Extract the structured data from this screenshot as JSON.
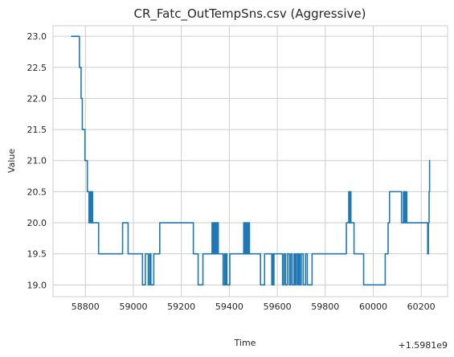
{
  "chart_data": {
    "type": "line",
    "title": "CR_Fatc_OutTempSns.csv (Aggressive)",
    "xlabel": "Time",
    "ylabel": "Value",
    "x_offset_label": "+1.5981e9",
    "xlim": [
      58665,
      60310
    ],
    "ylim": [
      18.81,
      23.17
    ],
    "xticks": [
      58800,
      59000,
      59200,
      59400,
      59600,
      59800,
      60000,
      60200
    ],
    "xtick_labels": [
      "58800",
      "59000",
      "59200",
      "59400",
      "59600",
      "59800",
      "60000",
      "60200"
    ],
    "yticks": [
      19.0,
      19.5,
      20.0,
      20.5,
      21.0,
      21.5,
      22.0,
      22.5,
      23.0
    ],
    "ytick_labels": [
      "19.0",
      "19.5",
      "20.0",
      "20.5",
      "21.0",
      "21.5",
      "22.0",
      "22.5",
      "23.0"
    ],
    "grid": true,
    "colors": {
      "series": "#1f77b4",
      "grid": "#cccccc",
      "text": "#262626"
    },
    "series": [
      {
        "step": "post",
        "x": [
          58740,
          58770,
          58775,
          58782,
          58787,
          58798,
          58808,
          58815,
          58818,
          58822,
          58826,
          58830,
          58850,
          58855,
          58955,
          58978,
          59000,
          59038,
          59050,
          59062,
          59068,
          59073,
          59085,
          59110,
          59250,
          59270,
          59290,
          59328,
          59331,
          59334,
          59337,
          59340,
          59342,
          59345,
          59348,
          59351,
          59354,
          59356,
          59374,
          59380,
          59383,
          59386,
          59390,
          59402,
          59422,
          59460,
          59463,
          59466,
          59469,
          59472,
          59476,
          59480,
          59484,
          59530,
          59547,
          59570,
          59577,
          59580,
          59583,
          59586,
          59595,
          59622,
          59628,
          59634,
          59642,
          59650,
          59656,
          59662,
          59670,
          59675,
          59680,
          59686,
          59690,
          59694,
          59700,
          59708,
          59718,
          59725,
          59745,
          59770,
          59790,
          59888,
          59898,
          59901,
          59904,
          59907,
          59910,
          59920,
          59960,
          59990,
          60050,
          60062,
          60068,
          60078,
          60118,
          60126,
          60129,
          60132,
          60134,
          60137,
          60140,
          60143,
          60146,
          60220,
          60227,
          60230,
          60233,
          60235,
          60237
        ],
        "y": [
          23.0,
          23.0,
          22.5,
          22.0,
          21.5,
          21.0,
          20.5,
          20.0,
          20.5,
          20.0,
          20.5,
          20.0,
          20.0,
          19.5,
          20.0,
          19.5,
          19.5,
          19.0,
          19.5,
          19.0,
          19.5,
          19.0,
          19.5,
          20.0,
          19.5,
          19.0,
          19.5,
          20.0,
          19.5,
          20.0,
          19.5,
          20.0,
          19.5,
          20.0,
          19.5,
          20.0,
          19.5,
          19.5,
          19.0,
          19.5,
          19.0,
          19.5,
          19.0,
          19.5,
          19.5,
          20.0,
          19.5,
          20.0,
          19.5,
          20.0,
          19.5,
          20.0,
          19.5,
          19.0,
          19.5,
          19.5,
          19.0,
          19.5,
          19.0,
          19.5,
          19.5,
          19.0,
          19.5,
          19.0,
          19.5,
          19.0,
          19.5,
          19.0,
          19.5,
          19.0,
          19.5,
          19.0,
          19.5,
          19.0,
          19.5,
          19.0,
          19.5,
          19.0,
          19.5,
          19.5,
          19.5,
          20.0,
          20.5,
          20.0,
          20.5,
          20.0,
          20.0,
          19.5,
          19.0,
          19.0,
          19.5,
          20.0,
          20.5,
          20.5,
          20.0,
          20.5,
          20.0,
          20.5,
          20.0,
          20.5,
          20.0,
          20.0,
          20.0,
          20.0,
          19.5,
          20.0,
          20.5,
          21.0,
          21.0
        ]
      }
    ]
  }
}
